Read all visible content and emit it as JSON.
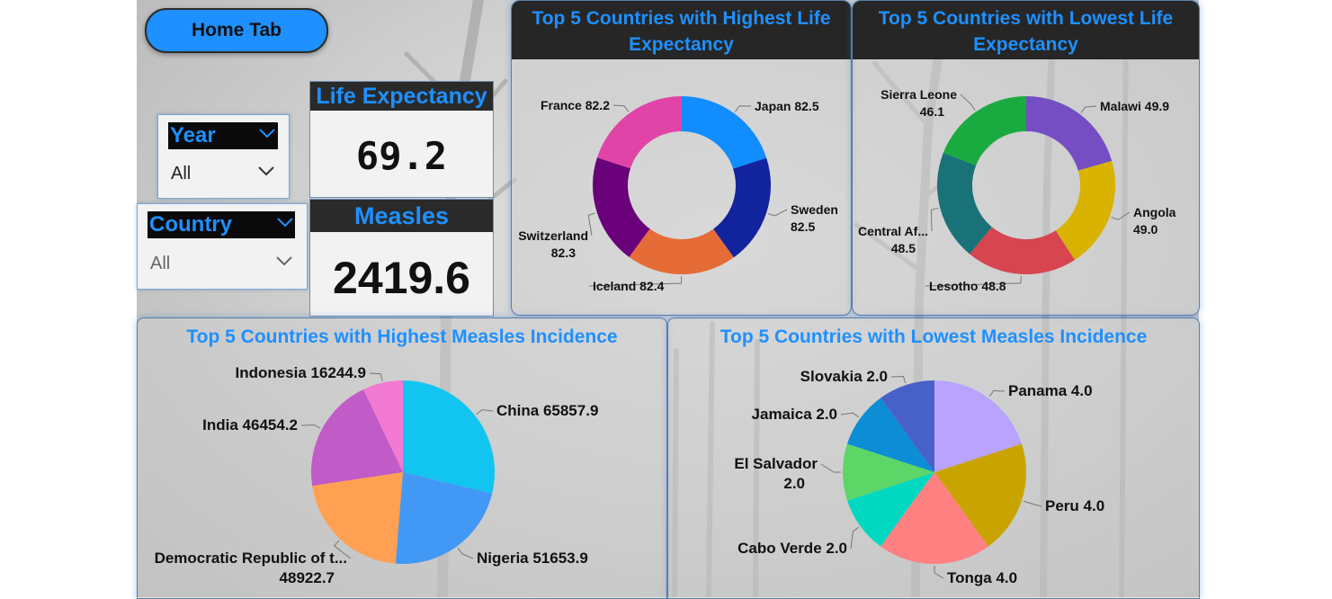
{
  "nav": {
    "home_label": "Home Tab"
  },
  "filters": {
    "year": {
      "label": "Year",
      "value": "All"
    },
    "country": {
      "label": "Country",
      "value": "All"
    }
  },
  "kpis": {
    "life": {
      "title": "Life Expectancy",
      "value": "69.2"
    },
    "measles": {
      "title": "Measles",
      "value": "2419.6"
    }
  },
  "colors": {
    "accent": "#1e90ff",
    "header_bg": "#262626"
  },
  "chart_data": [
    {
      "type": "pie",
      "variant": "donut",
      "title": "Top 5 Countries with Highest Life Expectancy",
      "slices": [
        {
          "label": "Japan 82.5",
          "name": "Japan",
          "value": 82.5,
          "color": "#118dff"
        },
        {
          "label": "Sweden 82.5",
          "name": "Sweden",
          "value": 82.5,
          "color": "#12239e"
        },
        {
          "label": "Iceland 82.4",
          "name": "Iceland",
          "value": 82.4,
          "color": "#e66c37"
        },
        {
          "label": "Switzerland 82.3",
          "name": "Switzerland",
          "value": 82.3,
          "color": "#6b007b"
        },
        {
          "label": "France 82.2",
          "name": "France",
          "value": 82.2,
          "color": "#e044a7"
        }
      ]
    },
    {
      "type": "pie",
      "variant": "donut",
      "title": "Top 5 Countries with Lowest Life Expectancy",
      "slices": [
        {
          "label": "Malawi 49.9",
          "name": "Malawi",
          "value": 49.9,
          "color": "#744ec2"
        },
        {
          "label": "Angola 49.0",
          "name": "Angola",
          "value": 49.0,
          "color": "#d9b300"
        },
        {
          "label": "Lesotho 48.8",
          "name": "Lesotho",
          "value": 48.8,
          "color": "#d64550"
        },
        {
          "label": "Central Af... 48.5",
          "name": "Central Af...",
          "value": 48.5,
          "color": "#197278"
        },
        {
          "label": "Sierra Leone 46.1",
          "name": "Sierra Leone",
          "value": 46.1,
          "color": "#1aab40"
        }
      ]
    },
    {
      "type": "pie",
      "title": "Top 5 Countries with Highest Measles Incidence",
      "slices": [
        {
          "label": "China 65857.9",
          "name": "China",
          "value": 65857.9,
          "color": "#12c5f0"
        },
        {
          "label": "Nigeria 51653.9",
          "name": "Nigeria",
          "value": 51653.9,
          "color": "#4299f5"
        },
        {
          "label": "Democratic Republic of t... 48922.7",
          "name": "Democratic Republic of t...",
          "value": 48922.7,
          "color": "#ffa052"
        },
        {
          "label": "India 46454.2",
          "name": "India",
          "value": 46454.2,
          "color": "#c05bc8"
        },
        {
          "label": "Indonesia 16244.9",
          "name": "Indonesia",
          "value": 16244.9,
          "color": "#f27ad2"
        }
      ]
    },
    {
      "type": "pie",
      "title": "Top 5 Countries with Lowest Measles Incidence",
      "slices": [
        {
          "label": "Panama 4.0",
          "name": "Panama",
          "value": 4.0,
          "color": "#b9a3ff"
        },
        {
          "label": "Peru 4.0",
          "name": "Peru",
          "value": 4.0,
          "color": "#c9a400"
        },
        {
          "label": "Tonga 4.0",
          "name": "Tonga",
          "value": 4.0,
          "color": "#ff8080"
        },
        {
          "label": "Cabo Verde 2.0",
          "name": "Cabo Verde",
          "value": 2.0,
          "color": "#00d9c0"
        },
        {
          "label": "El Salvador 2.0",
          "name": "El Salvador",
          "value": 2.0,
          "color": "#5bd667"
        },
        {
          "label": "Jamaica 2.0",
          "name": "Jamaica",
          "value": 2.0,
          "color": "#0c8dd6"
        },
        {
          "label": "Slovakia 2.0",
          "name": "Slovakia",
          "value": 2.0,
          "color": "#4761c9"
        }
      ]
    }
  ]
}
